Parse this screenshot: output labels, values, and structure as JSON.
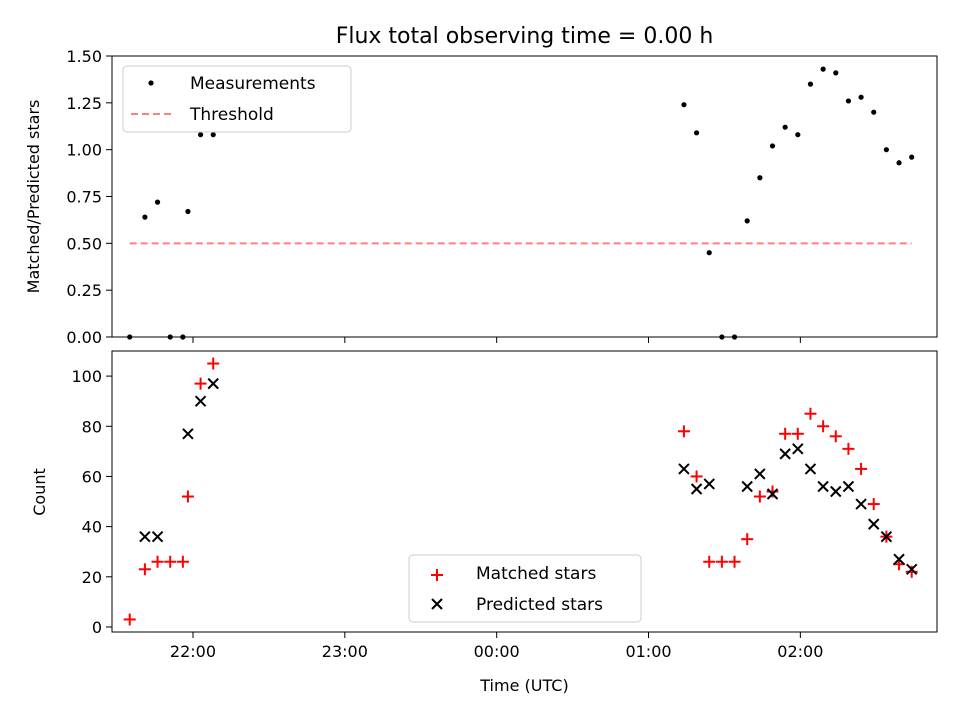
{
  "chart_data": [
    {
      "type": "scatter",
      "title": "Flux total observing time = 0.00 h",
      "xlabel": "",
      "ylabel": "Matched/Predicted stars",
      "xlim": [
        "21:28",
        "02:54"
      ],
      "ylim": [
        0,
        1.5
      ],
      "yticks": [
        0.0,
        0.25,
        0.5,
        0.75,
        1.0,
        1.25,
        1.5
      ],
      "ytick_labels": [
        "0.00",
        "0.25",
        "0.50",
        "0.75",
        "1.00",
        "1.25",
        "1.50"
      ],
      "xticks": [
        "22:00",
        "23:00",
        "00:00",
        "01:00",
        "02:00"
      ],
      "x_tick_labels_shown": false,
      "legend_position": "top-left",
      "series": [
        {
          "name": "Measurements",
          "marker": "dot",
          "color": "#000000",
          "x": [
            "21:35",
            "21:41",
            "21:46",
            "21:51",
            "21:56",
            "21:58",
            "22:03",
            "22:08",
            "01:14",
            "01:19",
            "01:24",
            "01:29",
            "01:34",
            "01:39",
            "01:44",
            "01:49",
            "01:54",
            "01:59",
            "02:04",
            "02:09",
            "02:14",
            "02:19",
            "02:24",
            "02:29",
            "02:34",
            "02:39",
            "02:44"
          ],
          "y": [
            0.0,
            0.64,
            0.72,
            0.0,
            0.0,
            0.67,
            1.08,
            1.08,
            1.24,
            1.09,
            0.45,
            0.0,
            0.0,
            0.62,
            0.85,
            1.02,
            1.12,
            1.08,
            1.35,
            1.43,
            1.41,
            1.26,
            1.28,
            1.2,
            1.0,
            0.93,
            0.96
          ]
        },
        {
          "name": "Threshold",
          "style": "dashed",
          "color": "#ff7f7f",
          "x": [
            "21:35",
            "02:44"
          ],
          "y": [
            0.5,
            0.5
          ]
        }
      ]
    },
    {
      "type": "scatter",
      "title": "",
      "xlabel": "Time (UTC)",
      "ylabel": "Count",
      "xlim": [
        "21:28",
        "02:54"
      ],
      "ylim": [
        -2,
        110
      ],
      "yticks": [
        0,
        20,
        40,
        60,
        80,
        100
      ],
      "ytick_labels": [
        "0",
        "20",
        "40",
        "60",
        "80",
        "100"
      ],
      "xticks": [
        "22:00",
        "23:00",
        "00:00",
        "01:00",
        "02:00"
      ],
      "xtick_labels": [
        "22:00",
        "23:00",
        "00:00",
        "01:00",
        "02:00"
      ],
      "legend_position": "bottom-center",
      "series": [
        {
          "name": "Matched stars",
          "marker": "plus",
          "color": "#ff0000",
          "x": [
            "21:35",
            "21:41",
            "21:46",
            "21:51",
            "21:56",
            "21:58",
            "22:03",
            "22:08",
            "01:14",
            "01:19",
            "01:24",
            "01:29",
            "01:34",
            "01:39",
            "01:44",
            "01:49",
            "01:54",
            "01:59",
            "02:04",
            "02:09",
            "02:14",
            "02:19",
            "02:24",
            "02:29",
            "02:34",
            "02:39",
            "02:44"
          ],
          "y": [
            3,
            23,
            26,
            26,
            26,
            52,
            97,
            105,
            78,
            60,
            26,
            26,
            26,
            35,
            52,
            54,
            77,
            77,
            85,
            80,
            76,
            71,
            63,
            49,
            36,
            25,
            22
          ]
        },
        {
          "name": "Predicted stars",
          "marker": "x",
          "color": "#000000",
          "x": [
            "21:41",
            "21:46",
            "21:58",
            "22:03",
            "22:08",
            "01:14",
            "01:19",
            "01:24",
            "01:39",
            "01:44",
            "01:49",
            "01:54",
            "01:59",
            "02:04",
            "02:09",
            "02:14",
            "02:19",
            "02:24",
            "02:29",
            "02:34",
            "02:39",
            "02:44"
          ],
          "y": [
            36,
            36,
            77,
            90,
            97,
            63,
            55,
            57,
            56,
            61,
            53,
            69,
            71,
            63,
            56,
            54,
            56,
            49,
            41,
            36,
            27,
            23
          ]
        }
      ]
    }
  ]
}
